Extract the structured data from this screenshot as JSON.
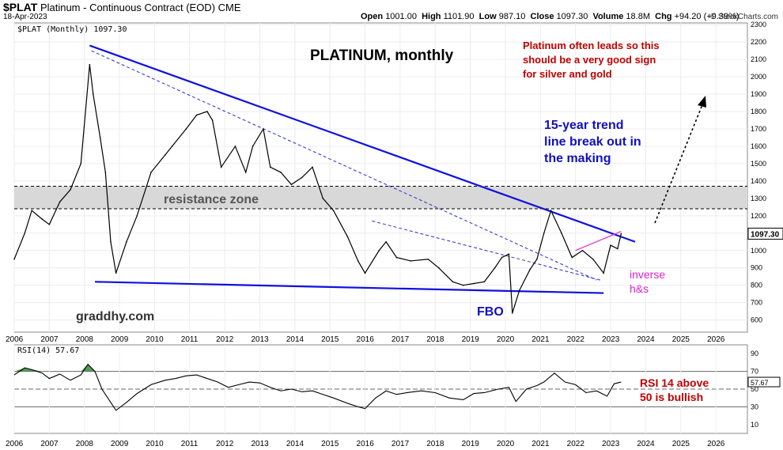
{
  "header": {
    "symbol": "$PLAT",
    "name": "Platinum - Continuous Contract (EOD)",
    "exchange": "CME",
    "date": "18-Apr-2023",
    "open_label": "Open",
    "open": "1001.00",
    "high_label": "High",
    "high": "1101.90",
    "low_label": "Low",
    "low": "987.10",
    "close_label": "Close",
    "close": "1097.30",
    "volume_label": "Volume",
    "volume": "18.8M",
    "chg_label": "Chg",
    "chg": "+94.20 (+9.39%)",
    "brand": "© StockCharts.com"
  },
  "chart_data": [
    {
      "type": "line",
      "panel": "price",
      "legend": "$PLAT (Monthly) 1097.30",
      "last_value_tag": "1097.30",
      "title": "PLATINUM, monthly",
      "xlabel": "",
      "ylabel": "",
      "ylim": [
        530,
        2310
      ],
      "xlim": [
        2006.0,
        2026.9
      ],
      "x_ticks": [
        "2006",
        "2007",
        "2008",
        "2009",
        "2010",
        "2011",
        "2012",
        "2013",
        "2014",
        "2015",
        "2016",
        "2017",
        "2018",
        "2019",
        "2020",
        "2021",
        "2022",
        "2023",
        "2024",
        "2025",
        "2026"
      ],
      "y_ticks": [
        600,
        700,
        800,
        900,
        1000,
        1100,
        1200,
        1300,
        1400,
        1500,
        1600,
        1700,
        1800,
        1900,
        2000,
        2100,
        2200,
        2300
      ],
      "grid": true,
      "series": [
        {
          "x": [
            2006.0,
            2006.3,
            2006.5,
            2006.8,
            2007.0,
            2007.3,
            2007.6,
            2007.9,
            2008.15,
            2008.25,
            2008.45,
            2008.6,
            2008.75,
            2008.9,
            2009.2,
            2009.5,
            2009.9,
            2010.3,
            2010.5,
            2010.9,
            2011.2,
            2011.5,
            2011.65,
            2011.9,
            2012.3,
            2012.6,
            2012.8,
            2013.1,
            2013.3,
            2013.6,
            2013.9,
            2014.2,
            2014.5,
            2014.8,
            2015.1,
            2015.5,
            2015.8,
            2016.0,
            2016.4,
            2016.6,
            2016.9,
            2017.3,
            2017.8,
            2018.1,
            2018.5,
            2018.8,
            2019.1,
            2019.4,
            2019.7,
            2019.9,
            2020.1,
            2020.2,
            2020.4,
            2020.7,
            2020.9,
            2021.1,
            2021.3,
            2021.6,
            2021.9,
            2022.2,
            2022.5,
            2022.8,
            2023.0,
            2023.2,
            2023.3
          ],
          "values": [
            950,
            1100,
            1230,
            1180,
            1150,
            1280,
            1350,
            1500,
            2070,
            1900,
            1650,
            1450,
            1050,
            870,
            1050,
            1200,
            1450,
            1550,
            1600,
            1700,
            1780,
            1800,
            1750,
            1480,
            1600,
            1450,
            1600,
            1700,
            1480,
            1450,
            1380,
            1420,
            1480,
            1300,
            1230,
            1080,
            940,
            870,
            1000,
            1050,
            960,
            940,
            950,
            900,
            820,
            800,
            810,
            820,
            900,
            960,
            980,
            640,
            770,
            890,
            950,
            1100,
            1230,
            1100,
            960,
            1000,
            950,
            870,
            1030,
            1010,
            1097
          ]
        }
      ],
      "annotations": [
        "resistance zone",
        "Platinum often leads so this should be a very good sign for silver and gold",
        "15-year trend line break out in the making",
        "inverse h&s",
        "FBO",
        "graddhy.com"
      ],
      "resistance_zone": [
        1240,
        1370
      ],
      "trendlines": [
        {
          "name": "15-year downtrend",
          "from": [
            2008.15,
            2180
          ],
          "to": [
            2023.7,
            1050
          ]
        },
        {
          "name": "support",
          "from": [
            2008.3,
            820
          ],
          "to": [
            2022.8,
            755
          ]
        },
        {
          "name": "dashed inner",
          "from": [
            2008.2,
            2150
          ],
          "to": [
            2022.6,
            830
          ]
        },
        {
          "name": "dashed 2016",
          "from": [
            2016.2,
            1170
          ],
          "to": [
            2022.7,
            830
          ]
        },
        {
          "name": "neckline",
          "from": [
            2022.0,
            1000
          ],
          "to": [
            2023.3,
            1110
          ]
        }
      ]
    },
    {
      "type": "line",
      "panel": "rsi",
      "legend": "RSI(14) 57.67",
      "last_value_tag": "57.67",
      "ylim": [
        0,
        100
      ],
      "y_ticks": [
        10,
        30,
        50,
        70,
        90
      ],
      "reference_lines": [
        30,
        50,
        70
      ],
      "series": [
        {
          "x": [
            2006.0,
            2006.3,
            2006.5,
            2006.8,
            2007.0,
            2007.3,
            2007.6,
            2007.9,
            2008.1,
            2008.3,
            2008.5,
            2008.7,
            2008.9,
            2009.2,
            2009.5,
            2009.9,
            2010.3,
            2010.6,
            2010.9,
            2011.2,
            2011.5,
            2011.8,
            2012.1,
            2012.4,
            2012.7,
            2013.0,
            2013.3,
            2013.6,
            2013.9,
            2014.2,
            2014.5,
            2014.8,
            2015.1,
            2015.5,
            2015.8,
            2016.0,
            2016.3,
            2016.6,
            2016.9,
            2017.2,
            2017.6,
            2018.0,
            2018.4,
            2018.8,
            2019.1,
            2019.4,
            2019.8,
            2020.1,
            2020.3,
            2020.6,
            2020.9,
            2021.1,
            2021.4,
            2021.7,
            2022.0,
            2022.3,
            2022.6,
            2022.9,
            2023.1,
            2023.3
          ],
          "values": [
            66,
            74,
            72,
            68,
            62,
            67,
            60,
            66,
            78,
            70,
            50,
            38,
            26,
            35,
            45,
            55,
            60,
            62,
            65,
            66,
            62,
            58,
            52,
            55,
            58,
            57,
            52,
            48,
            50,
            47,
            48,
            44,
            40,
            34,
            30,
            28,
            40,
            48,
            44,
            46,
            48,
            46,
            40,
            38,
            45,
            46,
            50,
            52,
            36,
            50,
            54,
            58,
            68,
            58,
            55,
            46,
            48,
            42,
            56,
            58
          ]
        }
      ]
    }
  ],
  "colors": {
    "price": "#000000",
    "trend": "#1010e0",
    "dashed": "#2a2ad0",
    "neckline": "#e040c0",
    "resistance": "#d8d8d8",
    "red_text": "#c00000",
    "blue_text": "#1010c0",
    "magenta_text": "#e020d0",
    "rsi_fill": "#3c8a3c"
  }
}
